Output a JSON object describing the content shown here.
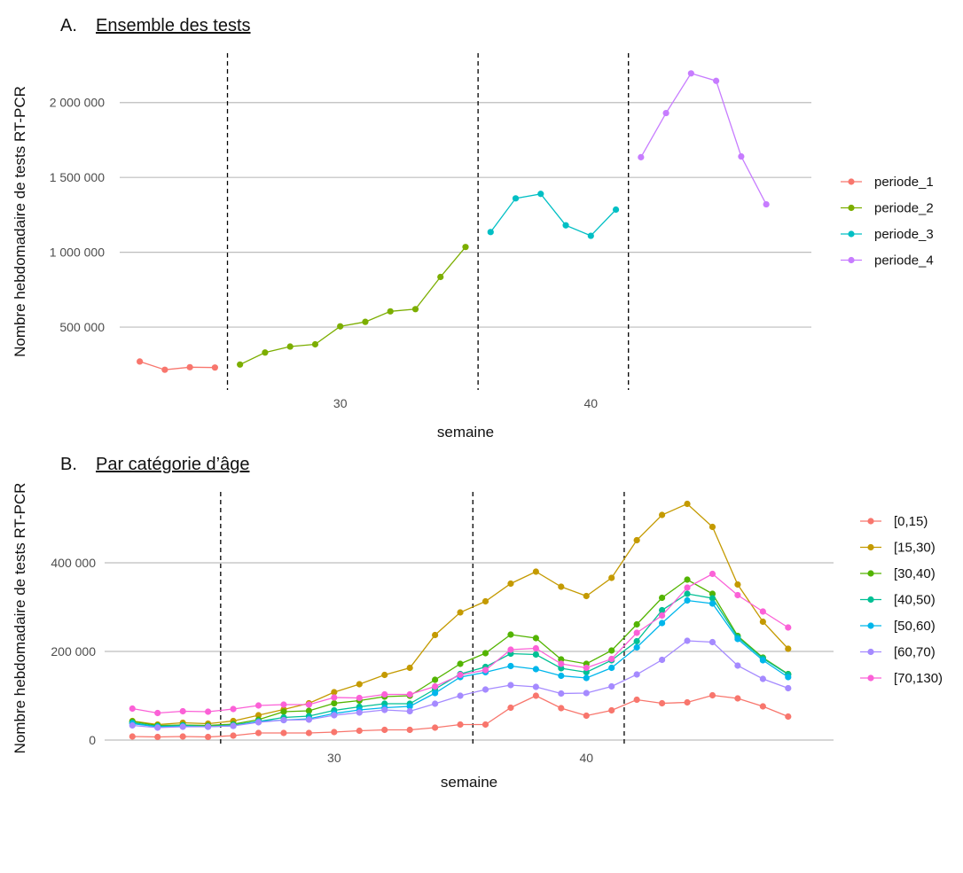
{
  "panels": {
    "a_letter": "A.",
    "a_title": "Ensemble des tests",
    "b_letter": "B.",
    "b_title": "Par catégorie d’âge"
  },
  "chart_data": [
    {
      "type": "line",
      "title": "Ensemble des tests",
      "xlabel": "semaine",
      "ylabel": "Nombre hebdomadaire de tests RT-PCR",
      "x_ticks": [
        30,
        40
      ],
      "y_ticks": [
        500000,
        1000000,
        1500000,
        2000000
      ],
      "y_tick_labels": [
        "500 000",
        "1 000 000",
        "1 500 000",
        "2 000 000"
      ],
      "xlim": [
        21.2,
        48.8
      ],
      "ylim": [
        80000,
        2330000
      ],
      "vlines": [
        25.5,
        35.5,
        41.5
      ],
      "grid": "horizontal major",
      "legend_position": "right",
      "series": [
        {
          "name": "periode_1",
          "color": "#F8766D",
          "x": [
            22,
            23,
            24,
            25
          ],
          "y": [
            270000,
            215000,
            232000,
            230000
          ]
        },
        {
          "name": "periode_2",
          "color": "#7CAE00",
          "x": [
            26,
            27,
            28,
            29,
            30,
            31,
            32,
            33,
            34,
            35
          ],
          "y": [
            250000,
            330000,
            370000,
            385000,
            505000,
            535000,
            605000,
            620000,
            835000,
            1035000
          ]
        },
        {
          "name": "periode_3",
          "color": "#00BFC4",
          "x": [
            36,
            37,
            38,
            39,
            40,
            41
          ],
          "y": [
            1135000,
            1360000,
            1390000,
            1180000,
            1110000,
            1285000
          ]
        },
        {
          "name": "periode_4",
          "color": "#C77CFF",
          "x": [
            42,
            43,
            44,
            45,
            46,
            47
          ],
          "y": [
            1635000,
            1930000,
            2195000,
            2145000,
            1640000,
            1320000
          ]
        }
      ]
    },
    {
      "type": "line",
      "title": "Par catégorie d’âge",
      "xlabel": "semaine",
      "ylabel": "Nombre hebdomadaire de tests RT-PCR",
      "x_ticks": [
        30,
        40
      ],
      "y_ticks": [
        0,
        200000,
        400000
      ],
      "y_tick_labels": [
        "0",
        "200 000",
        "400 000"
      ],
      "xlim": [
        20.9,
        49.8
      ],
      "ylim": [
        -10000,
        560000
      ],
      "vlines": [
        25.5,
        35.5,
        41.5
      ],
      "grid": "horizontal major",
      "legend_position": "right",
      "x": [
        22,
        23,
        24,
        25,
        26,
        27,
        28,
        29,
        30,
        31,
        32,
        33,
        34,
        35,
        36,
        37,
        38,
        39,
        40,
        41,
        42,
        43,
        44,
        45,
        46,
        47,
        48
      ],
      "series": [
        {
          "name": "[0,15)",
          "color": "#F8766D",
          "values": [
            8000,
            7000,
            8000,
            7000,
            10000,
            16000,
            16000,
            16000,
            18000,
            21000,
            23000,
            23000,
            28000,
            35000,
            35000,
            73000,
            100000,
            72000,
            55000,
            67000,
            91000,
            83000,
            85000,
            101000,
            94000,
            76000,
            53000
          ]
        },
        {
          "name": "[15,30)",
          "color": "#C49A00",
          "values": [
            43000,
            35000,
            39000,
            37000,
            43000,
            56000,
            69000,
            83000,
            108000,
            126000,
            147000,
            163000,
            237000,
            288000,
            313000,
            353000,
            380000,
            346000,
            325000,
            366000,
            451000,
            508000,
            533000,
            481000,
            351000,
            267000,
            206000
          ]
        },
        {
          "name": "[30,40)",
          "color": "#53B400",
          "values": [
            42000,
            33000,
            34000,
            33000,
            36000,
            46000,
            64000,
            66000,
            83000,
            89000,
            98000,
            100000,
            136000,
            172000,
            196000,
            238000,
            230000,
            182000,
            172000,
            202000,
            261000,
            321000,
            362000,
            330000,
            235000,
            186000,
            149000
          ]
        },
        {
          "name": "[40,50)",
          "color": "#00C094",
          "values": [
            39000,
            31000,
            33000,
            31000,
            34000,
            42000,
            51000,
            54000,
            67000,
            75000,
            82000,
            82000,
            115000,
            149000,
            165000,
            195000,
            193000,
            162000,
            153000,
            180000,
            223000,
            293000,
            330000,
            320000,
            232000,
            184000,
            148000
          ]
        },
        {
          "name": "[50,60)",
          "color": "#00B6EB",
          "values": [
            37000,
            30000,
            31000,
            30000,
            32000,
            42000,
            45000,
            48000,
            60000,
            68000,
            73000,
            76000,
            106000,
            142000,
            153000,
            167000,
            160000,
            145000,
            140000,
            163000,
            209000,
            264000,
            315000,
            308000,
            228000,
            180000,
            142000
          ]
        },
        {
          "name": "[60,70)",
          "color": "#A58AFF",
          "values": [
            33000,
            28000,
            30000,
            30000,
            32000,
            40000,
            45000,
            46000,
            56000,
            62000,
            68000,
            65000,
            82000,
            100000,
            114000,
            124000,
            120000,
            105000,
            106000,
            121000,
            148000,
            181000,
            224000,
            221000,
            168000,
            138000,
            117000
          ]
        },
        {
          "name": "[70,130)",
          "color": "#FB61D7",
          "values": [
            71000,
            61000,
            65000,
            64000,
            70000,
            78000,
            80000,
            80000,
            96000,
            95000,
            103000,
            103000,
            121000,
            147000,
            158000,
            204000,
            207000,
            172000,
            163000,
            183000,
            242000,
            281000,
            344000,
            375000,
            327000,
            290000,
            254000
          ]
        }
      ]
    }
  ]
}
